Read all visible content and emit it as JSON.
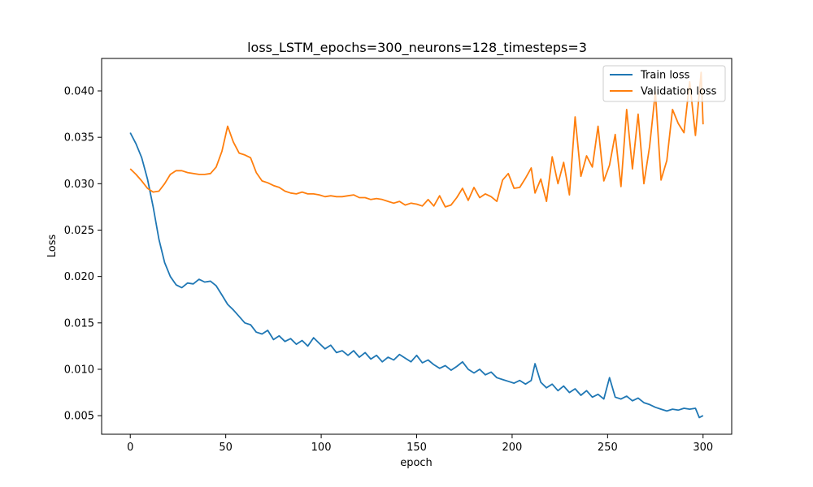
{
  "chart_data": {
    "type": "line",
    "title": "loss_LSTM_epochs=300_neurons=128_timesteps=3",
    "xlabel": "epoch",
    "ylabel": "Loss",
    "xlim": [
      -15,
      315
    ],
    "ylim": [
      0.003,
      0.0435
    ],
    "xticks": [
      0,
      50,
      100,
      150,
      200,
      250,
      300
    ],
    "yticks": [
      0.005,
      0.01,
      0.015,
      0.02,
      0.025,
      0.03,
      0.035,
      0.04
    ],
    "ytick_labels": [
      "0.005",
      "0.010",
      "0.015",
      "0.020",
      "0.025",
      "0.030",
      "0.035",
      "0.040"
    ],
    "grid": false,
    "legend_position": "top-right",
    "series": [
      {
        "name": "Train loss",
        "color": "#1f77b4",
        "points": [
          [
            0,
            0.0355
          ],
          [
            3,
            0.0343
          ],
          [
            6,
            0.0328
          ],
          [
            9,
            0.0305
          ],
          [
            12,
            0.0275
          ],
          [
            15,
            0.024
          ],
          [
            18,
            0.0215
          ],
          [
            21,
            0.02
          ],
          [
            24,
            0.0191
          ],
          [
            27,
            0.0188
          ],
          [
            30,
            0.0193
          ],
          [
            33,
            0.0192
          ],
          [
            36,
            0.0197
          ],
          [
            39,
            0.0194
          ],
          [
            42,
            0.0195
          ],
          [
            45,
            0.019
          ],
          [
            48,
            0.018
          ],
          [
            51,
            0.017
          ],
          [
            54,
            0.0164
          ],
          [
            57,
            0.0157
          ],
          [
            60,
            0.015
          ],
          [
            63,
            0.0148
          ],
          [
            66,
            0.014
          ],
          [
            69,
            0.0138
          ],
          [
            72,
            0.0142
          ],
          [
            75,
            0.0132
          ],
          [
            78,
            0.0136
          ],
          [
            81,
            0.013
          ],
          [
            84,
            0.0133
          ],
          [
            87,
            0.0127
          ],
          [
            90,
            0.0131
          ],
          [
            93,
            0.0125
          ],
          [
            96,
            0.0134
          ],
          [
            99,
            0.0128
          ],
          [
            102,
            0.0122
          ],
          [
            105,
            0.0126
          ],
          [
            108,
            0.0118
          ],
          [
            111,
            0.012
          ],
          [
            114,
            0.0115
          ],
          [
            117,
            0.012
          ],
          [
            120,
            0.0113
          ],
          [
            123,
            0.0118
          ],
          [
            126,
            0.0111
          ],
          [
            129,
            0.0115
          ],
          [
            132,
            0.0108
          ],
          [
            135,
            0.0113
          ],
          [
            138,
            0.011
          ],
          [
            141,
            0.0116
          ],
          [
            144,
            0.0112
          ],
          [
            147,
            0.0108
          ],
          [
            150,
            0.0115
          ],
          [
            153,
            0.0107
          ],
          [
            156,
            0.011
          ],
          [
            159,
            0.0105
          ],
          [
            162,
            0.0101
          ],
          [
            165,
            0.0104
          ],
          [
            168,
            0.0099
          ],
          [
            171,
            0.0103
          ],
          [
            174,
            0.0108
          ],
          [
            177,
            0.01
          ],
          [
            180,
            0.0096
          ],
          [
            183,
            0.01
          ],
          [
            186,
            0.0094
          ],
          [
            189,
            0.0097
          ],
          [
            192,
            0.0091
          ],
          [
            195,
            0.0089
          ],
          [
            198,
            0.0087
          ],
          [
            201,
            0.0085
          ],
          [
            204,
            0.0088
          ],
          [
            207,
            0.0084
          ],
          [
            210,
            0.0088
          ],
          [
            212,
            0.0106
          ],
          [
            215,
            0.0086
          ],
          [
            218,
            0.008
          ],
          [
            221,
            0.0084
          ],
          [
            224,
            0.0077
          ],
          [
            227,
            0.0082
          ],
          [
            230,
            0.0075
          ],
          [
            233,
            0.0079
          ],
          [
            236,
            0.0072
          ],
          [
            239,
            0.0077
          ],
          [
            242,
            0.007
          ],
          [
            245,
            0.0073
          ],
          [
            248,
            0.0068
          ],
          [
            251,
            0.0091
          ],
          [
            254,
            0.007
          ],
          [
            257,
            0.0068
          ],
          [
            260,
            0.0071
          ],
          [
            263,
            0.0066
          ],
          [
            266,
            0.0069
          ],
          [
            269,
            0.0064
          ],
          [
            272,
            0.0062
          ],
          [
            275,
            0.0059
          ],
          [
            278,
            0.0057
          ],
          [
            281,
            0.0055
          ],
          [
            284,
            0.0057
          ],
          [
            287,
            0.0056
          ],
          [
            290,
            0.0058
          ],
          [
            293,
            0.0057
          ],
          [
            296,
            0.0058
          ],
          [
            298,
            0.0048
          ],
          [
            300,
            0.005
          ]
        ]
      },
      {
        "name": "Validation loss",
        "color": "#ff7f0e",
        "points": [
          [
            0,
            0.0316
          ],
          [
            3,
            0.031
          ],
          [
            6,
            0.0303
          ],
          [
            9,
            0.0295
          ],
          [
            12,
            0.0291
          ],
          [
            15,
            0.0292
          ],
          [
            18,
            0.03
          ],
          [
            21,
            0.031
          ],
          [
            24,
            0.0314
          ],
          [
            27,
            0.0314
          ],
          [
            30,
            0.0312
          ],
          [
            33,
            0.0311
          ],
          [
            36,
            0.031
          ],
          [
            39,
            0.031
          ],
          [
            42,
            0.0311
          ],
          [
            45,
            0.0318
          ],
          [
            48,
            0.0335
          ],
          [
            51,
            0.0362
          ],
          [
            54,
            0.0345
          ],
          [
            57,
            0.0333
          ],
          [
            60,
            0.0331
          ],
          [
            63,
            0.0328
          ],
          [
            66,
            0.0312
          ],
          [
            69,
            0.0303
          ],
          [
            72,
            0.0301
          ],
          [
            75,
            0.0298
          ],
          [
            78,
            0.0296
          ],
          [
            81,
            0.0292
          ],
          [
            84,
            0.029
          ],
          [
            87,
            0.0289
          ],
          [
            90,
            0.0291
          ],
          [
            93,
            0.0289
          ],
          [
            96,
            0.0289
          ],
          [
            99,
            0.0288
          ],
          [
            102,
            0.0286
          ],
          [
            105,
            0.0287
          ],
          [
            108,
            0.0286
          ],
          [
            111,
            0.0286
          ],
          [
            114,
            0.0287
          ],
          [
            117,
            0.0288
          ],
          [
            120,
            0.0285
          ],
          [
            123,
            0.0285
          ],
          [
            126,
            0.0283
          ],
          [
            129,
            0.0284
          ],
          [
            132,
            0.0283
          ],
          [
            135,
            0.0281
          ],
          [
            138,
            0.0279
          ],
          [
            141,
            0.0281
          ],
          [
            144,
            0.0277
          ],
          [
            147,
            0.0279
          ],
          [
            150,
            0.0278
          ],
          [
            153,
            0.0276
          ],
          [
            156,
            0.0283
          ],
          [
            159,
            0.0276
          ],
          [
            162,
            0.0287
          ],
          [
            165,
            0.0275
          ],
          [
            168,
            0.0277
          ],
          [
            171,
            0.0285
          ],
          [
            174,
            0.0295
          ],
          [
            177,
            0.0282
          ],
          [
            180,
            0.0296
          ],
          [
            183,
            0.0285
          ],
          [
            186,
            0.0289
          ],
          [
            189,
            0.0286
          ],
          [
            192,
            0.0281
          ],
          [
            195,
            0.0304
          ],
          [
            198,
            0.0311
          ],
          [
            201,
            0.0295
          ],
          [
            204,
            0.0296
          ],
          [
            207,
            0.0306
          ],
          [
            210,
            0.0317
          ],
          [
            212,
            0.029
          ],
          [
            215,
            0.0305
          ],
          [
            218,
            0.0281
          ],
          [
            221,
            0.0329
          ],
          [
            224,
            0.03
          ],
          [
            227,
            0.0323
          ],
          [
            230,
            0.0288
          ],
          [
            233,
            0.0372
          ],
          [
            236,
            0.0308
          ],
          [
            239,
            0.033
          ],
          [
            242,
            0.0318
          ],
          [
            245,
            0.0362
          ],
          [
            248,
            0.0303
          ],
          [
            251,
            0.032
          ],
          [
            254,
            0.0353
          ],
          [
            257,
            0.0297
          ],
          [
            260,
            0.038
          ],
          [
            263,
            0.0316
          ],
          [
            266,
            0.0375
          ],
          [
            269,
            0.03
          ],
          [
            272,
            0.034
          ],
          [
            275,
            0.0399
          ],
          [
            278,
            0.0304
          ],
          [
            281,
            0.0325
          ],
          [
            284,
            0.038
          ],
          [
            287,
            0.0365
          ],
          [
            290,
            0.0355
          ],
          [
            293,
            0.041
          ],
          [
            296,
            0.0352
          ],
          [
            299,
            0.042
          ],
          [
            300,
            0.0364
          ]
        ]
      }
    ]
  }
}
